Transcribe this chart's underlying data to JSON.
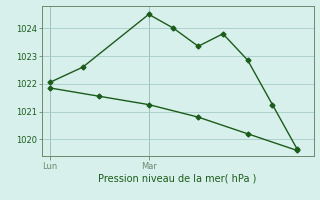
{
  "line1_x": [
    0,
    4,
    12,
    15,
    18,
    21,
    24,
    27,
    30
  ],
  "line1_y": [
    1022.05,
    1022.6,
    1024.5,
    1024.0,
    1023.35,
    1023.8,
    1022.85,
    1021.25,
    1019.65
  ],
  "line2_x": [
    0,
    6,
    12,
    18,
    24,
    30
  ],
  "line2_y": [
    1021.85,
    1021.55,
    1021.25,
    1020.8,
    1020.2,
    1019.6
  ],
  "line_color": "#1a5c1a",
  "bg_color": "#d8f0ec",
  "grid_color": "#a8ccc8",
  "axis_color": "#6a8a6a",
  "text_color": "#1a5c1a",
  "xlabel": "Pression niveau de la mer( hPa )",
  "ylim": [
    1019.4,
    1024.8
  ],
  "yticks": [
    1020,
    1021,
    1022,
    1023,
    1024
  ],
  "xlim": [
    -1,
    32
  ],
  "xtick_positions": [
    0,
    12
  ],
  "xtick_labels": [
    "Lun",
    "Mar"
  ],
  "vline_positions": [
    0,
    12
  ],
  "marker": "D",
  "markersize": 2.5,
  "linewidth": 1.0
}
